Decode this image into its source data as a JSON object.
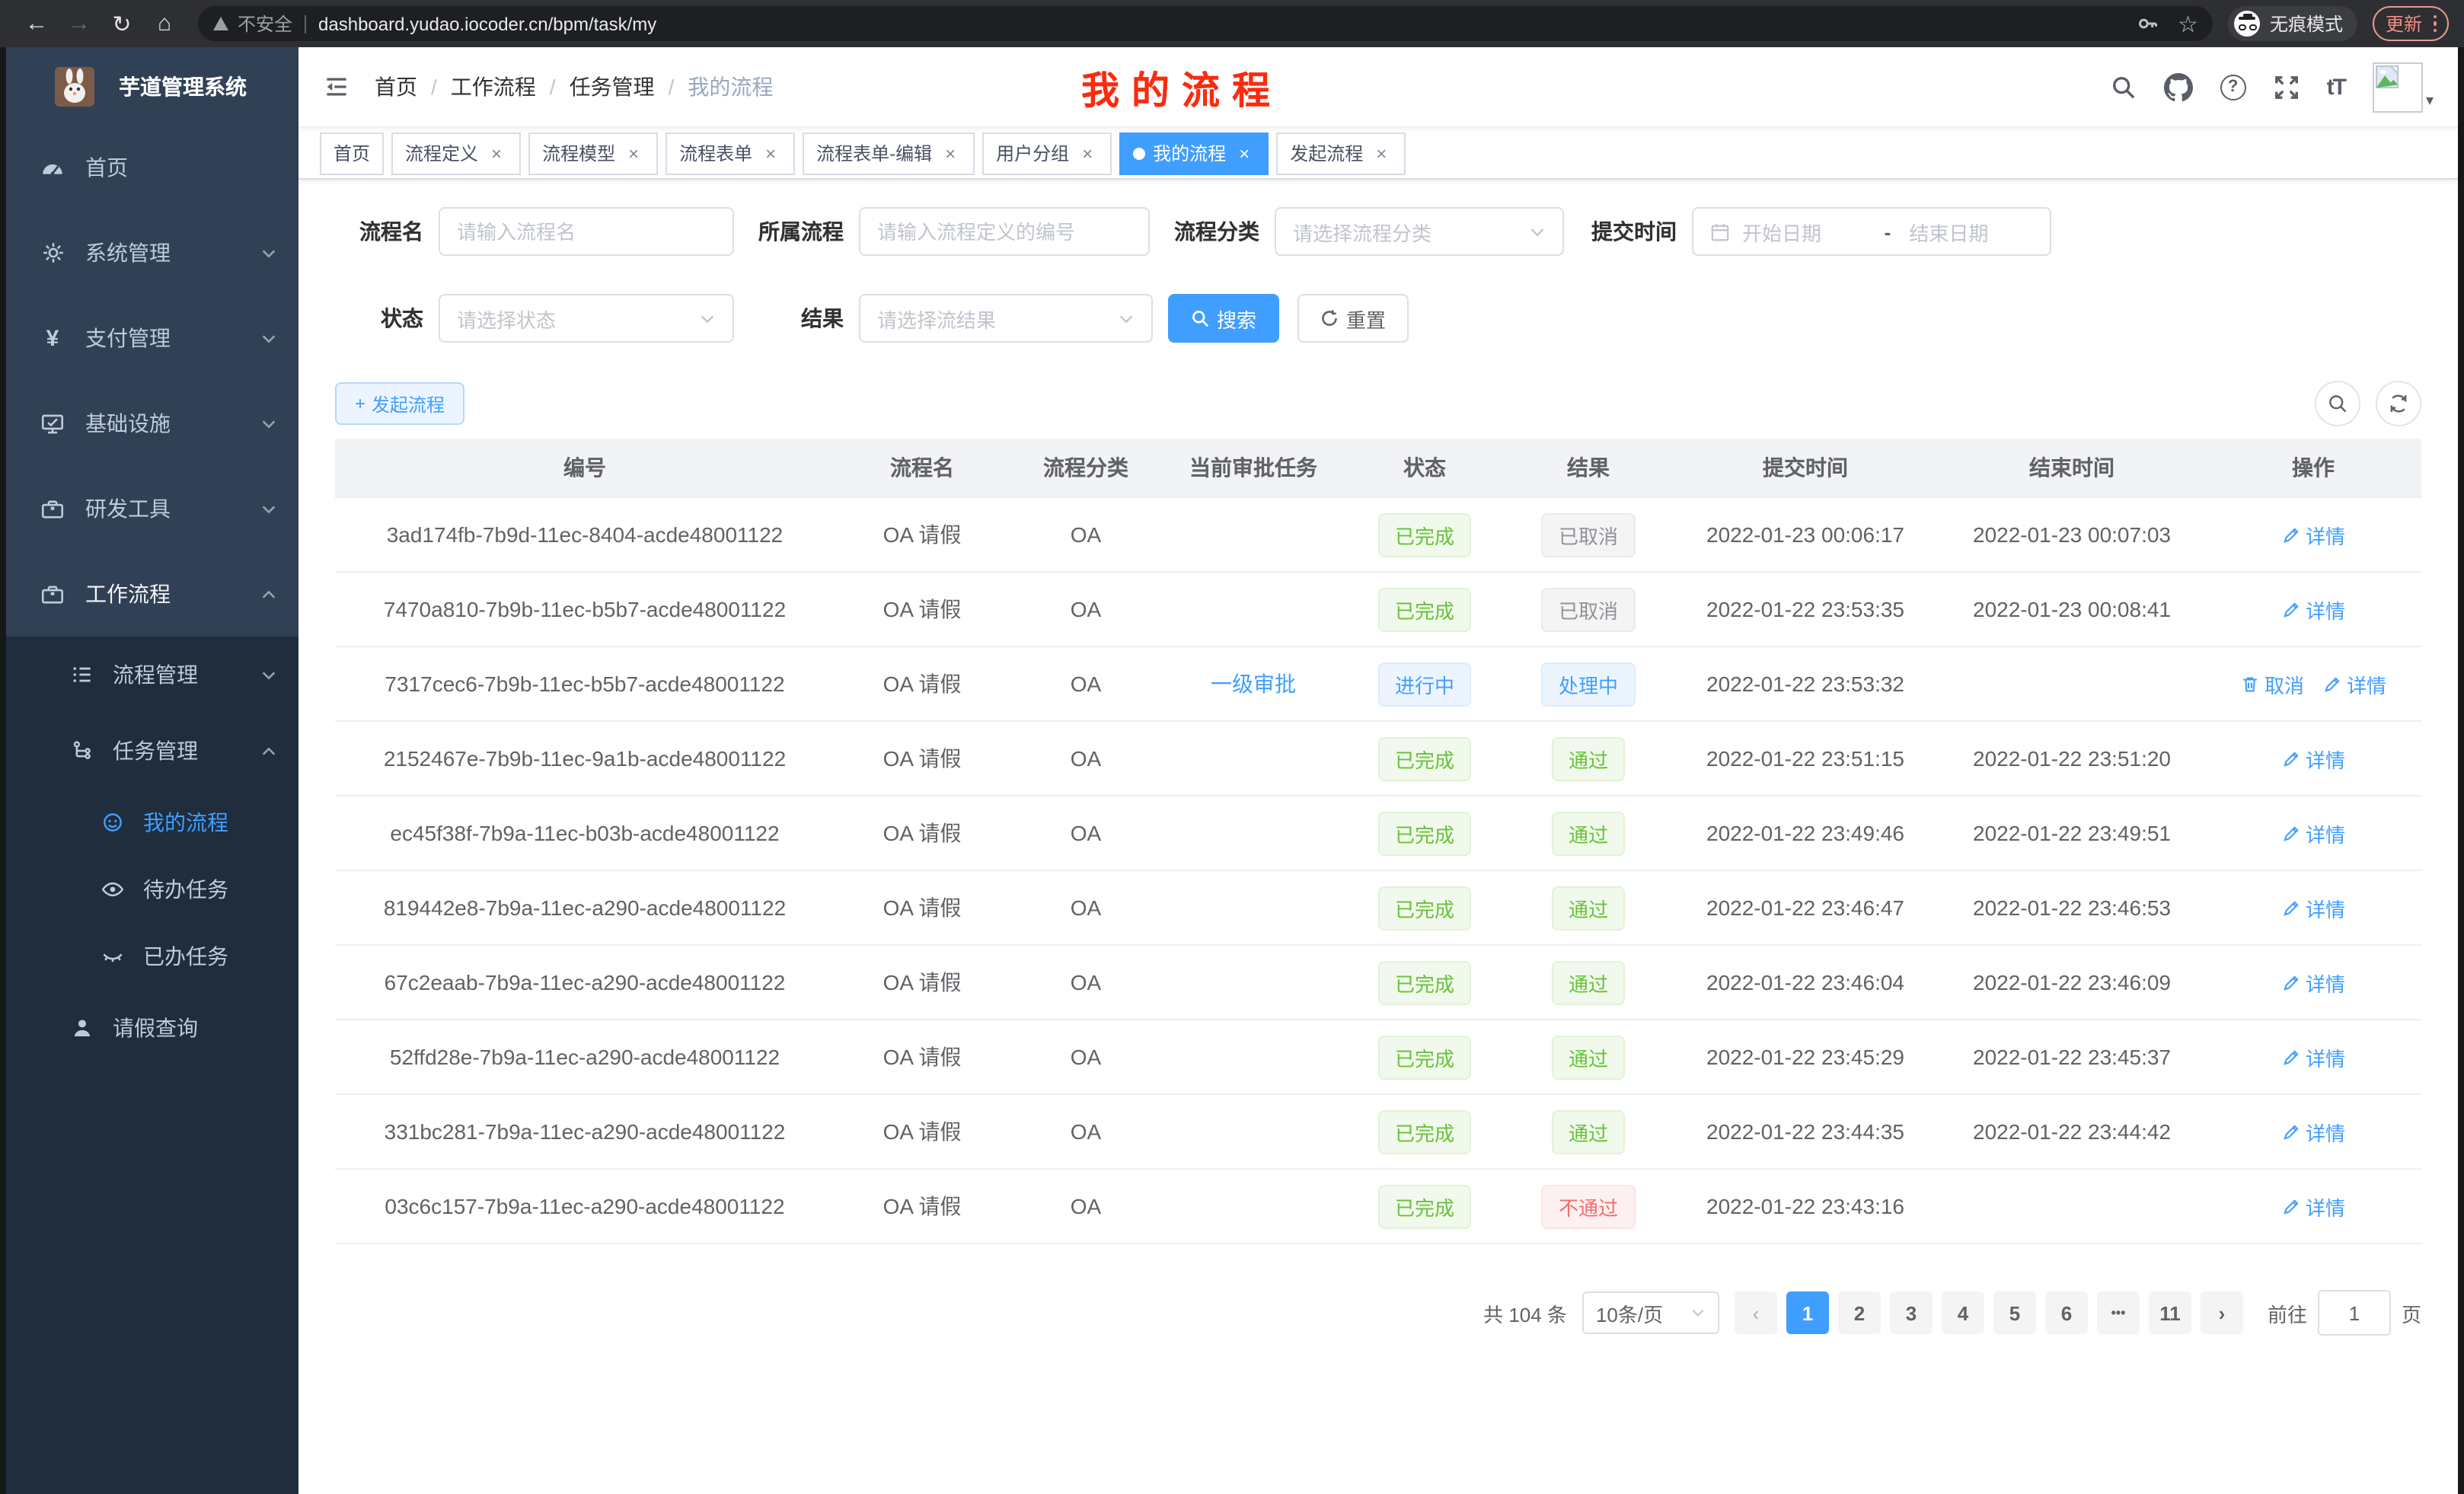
{
  "colors": {
    "accent": "#409eff",
    "success": "#67c23a",
    "danger": "#f56c6c",
    "info": "#909399",
    "sidebar": "#304156",
    "submenu": "#1f2d3d",
    "tag_red": "#fb2b0e"
  },
  "browser": {
    "security_label": "不安全",
    "url": "dashboard.yudao.iocoder.cn/bpm/task/my",
    "incognito_label": "无痕模式",
    "update_label": "更新",
    "icons": {
      "back": "←",
      "forward": "→",
      "reload": "↻",
      "home": "⌂",
      "star": "☆",
      "caret": "▾"
    }
  },
  "sidebar": {
    "app_title": "芋道管理系统",
    "items": [
      {
        "label": "首页"
      },
      {
        "label": "系统管理"
      },
      {
        "label": "支付管理"
      },
      {
        "label": "基础设施"
      },
      {
        "label": "研发工具"
      },
      {
        "label": "工作流程"
      }
    ],
    "yen_glyph": "¥",
    "submenu": {
      "process_mgmt": "流程管理",
      "task_mgmt": "任务管理",
      "children": [
        "我的流程",
        "待办任务",
        "已办任务"
      ],
      "leave_query": "请假查询"
    }
  },
  "navbar": {
    "breadcrumb": [
      "首页",
      "工作流程",
      "任务管理",
      "我的流程"
    ],
    "overlay_title": "我的流程"
  },
  "tabs": [
    {
      "label": "首页",
      "closable": false,
      "active": false
    },
    {
      "label": "流程定义",
      "closable": true,
      "active": false
    },
    {
      "label": "流程模型",
      "closable": true,
      "active": false
    },
    {
      "label": "流程表单",
      "closable": true,
      "active": false
    },
    {
      "label": "流程表单-编辑",
      "closable": true,
      "active": false
    },
    {
      "label": "用户分组",
      "closable": true,
      "active": false
    },
    {
      "label": "我的流程",
      "closable": true,
      "active": true
    },
    {
      "label": "发起流程",
      "closable": true,
      "active": false
    }
  ],
  "filters": {
    "name_label": "流程名",
    "name_placeholder": "请输入流程名",
    "process_label": "所属流程",
    "process_placeholder": "请输入流程定义的编号",
    "category_label": "流程分类",
    "category_placeholder": "请选择流程分类",
    "time_label": "提交时间",
    "date_start_placeholder": "开始日期",
    "date_separator": "-",
    "date_end_placeholder": "结束日期",
    "status_label": "状态",
    "status_placeholder": "请选择状态",
    "result_label": "结果",
    "result_placeholder": "请选择流结果",
    "search_label": "搜索",
    "reset_label": "重置"
  },
  "toolbar": {
    "create_label": "发起流程",
    "plus": "+"
  },
  "table": {
    "columns": [
      "编号",
      "流程名",
      "流程分类",
      "当前审批任务",
      "状态",
      "结果",
      "提交时间",
      "结束时间",
      "操作"
    ],
    "rows": [
      {
        "id": "3ad174fb-7b9d-11ec-8404-acde48001122",
        "name": "OA 请假",
        "category": "OA",
        "task": "",
        "status": {
          "text": "已完成",
          "type": "success"
        },
        "result": {
          "text": "已取消",
          "type": "info"
        },
        "submit": "2022-01-23 00:06:17",
        "end": "2022-01-23 00:07:03",
        "actions": [
          {
            "label": "详情",
            "icon": "edit"
          }
        ]
      },
      {
        "id": "7470a810-7b9b-11ec-b5b7-acde48001122",
        "name": "OA 请假",
        "category": "OA",
        "task": "",
        "status": {
          "text": "已完成",
          "type": "success"
        },
        "result": {
          "text": "已取消",
          "type": "info"
        },
        "submit": "2022-01-22 23:53:35",
        "end": "2022-01-23 00:08:41",
        "actions": [
          {
            "label": "详情",
            "icon": "edit"
          }
        ]
      },
      {
        "id": "7317cec6-7b9b-11ec-b5b7-acde48001122",
        "name": "OA 请假",
        "category": "OA",
        "task": "一级审批",
        "status": {
          "text": "进行中",
          "type": "primary"
        },
        "result": {
          "text": "处理中",
          "type": "primary"
        },
        "submit": "2022-01-22 23:53:32",
        "end": "",
        "actions": [
          {
            "label": "取消",
            "icon": "trash"
          },
          {
            "label": "详情",
            "icon": "edit"
          }
        ]
      },
      {
        "id": "2152467e-7b9b-11ec-9a1b-acde48001122",
        "name": "OA 请假",
        "category": "OA",
        "task": "",
        "status": {
          "text": "已完成",
          "type": "success"
        },
        "result": {
          "text": "通过",
          "type": "success"
        },
        "submit": "2022-01-22 23:51:15",
        "end": "2022-01-22 23:51:20",
        "actions": [
          {
            "label": "详情",
            "icon": "edit"
          }
        ]
      },
      {
        "id": "ec45f38f-7b9a-11ec-b03b-acde48001122",
        "name": "OA 请假",
        "category": "OA",
        "task": "",
        "status": {
          "text": "已完成",
          "type": "success"
        },
        "result": {
          "text": "通过",
          "type": "success"
        },
        "submit": "2022-01-22 23:49:46",
        "end": "2022-01-22 23:49:51",
        "actions": [
          {
            "label": "详情",
            "icon": "edit"
          }
        ]
      },
      {
        "id": "819442e8-7b9a-11ec-a290-acde48001122",
        "name": "OA 请假",
        "category": "OA",
        "task": "",
        "status": {
          "text": "已完成",
          "type": "success"
        },
        "result": {
          "text": "通过",
          "type": "success"
        },
        "submit": "2022-01-22 23:46:47",
        "end": "2022-01-22 23:46:53",
        "actions": [
          {
            "label": "详情",
            "icon": "edit"
          }
        ]
      },
      {
        "id": "67c2eaab-7b9a-11ec-a290-acde48001122",
        "name": "OA 请假",
        "category": "OA",
        "task": "",
        "status": {
          "text": "已完成",
          "type": "success"
        },
        "result": {
          "text": "通过",
          "type": "success"
        },
        "submit": "2022-01-22 23:46:04",
        "end": "2022-01-22 23:46:09",
        "actions": [
          {
            "label": "详情",
            "icon": "edit"
          }
        ]
      },
      {
        "id": "52ffd28e-7b9a-11ec-a290-acde48001122",
        "name": "OA 请假",
        "category": "OA",
        "task": "",
        "status": {
          "text": "已完成",
          "type": "success"
        },
        "result": {
          "text": "通过",
          "type": "success"
        },
        "submit": "2022-01-22 23:45:29",
        "end": "2022-01-22 23:45:37",
        "actions": [
          {
            "label": "详情",
            "icon": "edit"
          }
        ]
      },
      {
        "id": "331bc281-7b9a-11ec-a290-acde48001122",
        "name": "OA 请假",
        "category": "OA",
        "task": "",
        "status": {
          "text": "已完成",
          "type": "success"
        },
        "result": {
          "text": "通过",
          "type": "success"
        },
        "submit": "2022-01-22 23:44:35",
        "end": "2022-01-22 23:44:42",
        "actions": [
          {
            "label": "详情",
            "icon": "edit"
          }
        ]
      },
      {
        "id": "03c6c157-7b9a-11ec-a290-acde48001122",
        "name": "OA 请假",
        "category": "OA",
        "task": "",
        "status": {
          "text": "已完成",
          "type": "success"
        },
        "result": {
          "text": "不通过",
          "type": "danger"
        },
        "submit": "2022-01-22 23:43:16",
        "end": "",
        "actions": [
          {
            "label": "详情",
            "icon": "edit"
          }
        ]
      }
    ]
  },
  "pagination": {
    "total_label": "共 104 条",
    "page_size": "10条/页",
    "prev": "‹",
    "next": "›",
    "ellipsis": "•••",
    "pages": [
      "1",
      "2",
      "3",
      "4",
      "5",
      "6",
      "•••",
      "11"
    ],
    "active_page": "1",
    "goto_label": "前往",
    "goto_value": "1",
    "page_label": "页"
  }
}
